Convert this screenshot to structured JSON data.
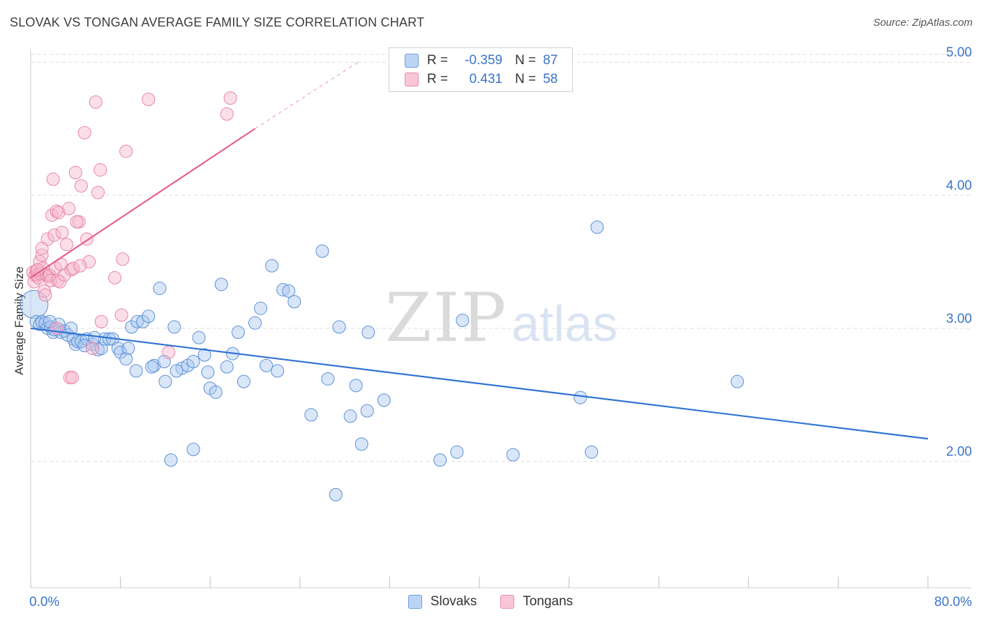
{
  "title": "SLOVAK VS TONGAN AVERAGE FAMILY SIZE CORRELATION CHART",
  "source": "Source: ZipAtlas.com",
  "watermark": {
    "zip": "ZIP",
    "atlas": "atlas"
  },
  "colors": {
    "slovak_fill": "#a9c8f0",
    "slovak_stroke": "#5b8fd6",
    "slovak_line": "#2f72d4",
    "tongan_fill": "#f6b9cb",
    "tongan_stroke": "#e883a4",
    "tongan_line": "#e55f8c",
    "axis_label": "#3a73c9"
  },
  "legend": {
    "rows": [
      {
        "r_label": "R =",
        "r_value": "-0.359",
        "n_label": "N =",
        "n_value": "87"
      },
      {
        "r_label": "R =",
        "r_value": "0.431",
        "n_label": "N =",
        "n_value": "58"
      }
    ]
  },
  "chart_data": {
    "type": "scatter",
    "title": "SLOVAK VS TONGAN AVERAGE FAMILY SIZE CORRELATION CHART",
    "xlabel": "",
    "ylabel": "Average Family Size",
    "xlim": [
      0,
      80
    ],
    "ylim": [
      1.05,
      5.1
    ],
    "x_tick_labels": [
      "0.0%",
      "80.0%"
    ],
    "y_ticks": [
      2.0,
      3.0,
      4.0,
      5.0
    ],
    "y_tick_labels": [
      "2.00",
      "3.00",
      "4.00",
      "5.00"
    ],
    "grid": true,
    "legend_position": "bottom",
    "series": [
      {
        "name": "Slovaks",
        "r": -0.359,
        "n": 87,
        "trend": {
          "x0": 0,
          "y0": 3.0,
          "x1": 80,
          "y1": 2.17
        },
        "points": [
          [
            0.3,
            3.18
          ],
          [
            0.5,
            3.05
          ],
          [
            0.8,
            3.03
          ],
          [
            1.0,
            3.05
          ],
          [
            1.3,
            3.04
          ],
          [
            1.5,
            3.0
          ],
          [
            1.8,
            3.01
          ],
          [
            2.0,
            2.97
          ],
          [
            2.3,
            3.0
          ],
          [
            2.5,
            3.03
          ],
          [
            2.7,
            2.97
          ],
          [
            3.0,
            2.98
          ],
          [
            3.3,
            2.95
          ],
          [
            3.6,
            3.0
          ],
          [
            3.8,
            2.92
          ],
          [
            4.0,
            2.88
          ],
          [
            4.2,
            2.9
          ],
          [
            4.5,
            2.9
          ],
          [
            5.0,
            2.92
          ],
          [
            5.5,
            2.88
          ],
          [
            6.0,
            2.84
          ],
          [
            6.3,
            2.85
          ],
          [
            6.6,
            2.92
          ],
          [
            7.0,
            2.92
          ],
          [
            7.3,
            2.92
          ],
          [
            7.8,
            2.85
          ],
          [
            8.0,
            2.82
          ],
          [
            8.5,
            2.77
          ],
          [
            9.0,
            3.01
          ],
          [
            9.5,
            3.05
          ],
          [
            10.0,
            3.05
          ],
          [
            10.5,
            3.09
          ],
          [
            11.0,
            2.72
          ],
          [
            11.5,
            3.3
          ],
          [
            12.0,
            2.6
          ],
          [
            12.8,
            3.01
          ],
          [
            13.5,
            2.7
          ],
          [
            14.0,
            2.72
          ],
          [
            14.5,
            2.75
          ],
          [
            15.0,
            2.93
          ],
          [
            15.5,
            2.8
          ],
          [
            16.0,
            2.55
          ],
          [
            16.5,
            2.52
          ],
          [
            17.0,
            3.33
          ],
          [
            17.5,
            2.71
          ],
          [
            18.0,
            2.81
          ],
          [
            18.5,
            2.97
          ],
          [
            19.0,
            2.6
          ],
          [
            20.0,
            3.04
          ],
          [
            20.5,
            3.15
          ],
          [
            21.0,
            2.72
          ],
          [
            21.5,
            3.47
          ],
          [
            22.0,
            2.68
          ],
          [
            22.5,
            3.29
          ],
          [
            23.0,
            3.28
          ],
          [
            23.5,
            3.2
          ],
          [
            9.4,
            2.68
          ],
          [
            13.0,
            2.68
          ],
          [
            12.5,
            2.01
          ],
          [
            14.5,
            2.09
          ],
          [
            15.8,
            2.67
          ],
          [
            25.0,
            2.35
          ],
          [
            26.0,
            3.58
          ],
          [
            26.5,
            2.62
          ],
          [
            27.5,
            3.01
          ],
          [
            27.2,
            1.75
          ],
          [
            28.5,
            2.34
          ],
          [
            29.0,
            2.57
          ],
          [
            29.5,
            2.13
          ],
          [
            30.0,
            2.38
          ],
          [
            31.5,
            2.46
          ],
          [
            36.5,
            2.01
          ],
          [
            38.0,
            2.07
          ],
          [
            38.5,
            3.06
          ],
          [
            43.0,
            2.05
          ],
          [
            49.0,
            2.48
          ],
          [
            50.0,
            2.07
          ],
          [
            50.5,
            3.76
          ],
          [
            63.0,
            2.6
          ],
          [
            2.1,
            2.99
          ],
          [
            4.8,
            2.87
          ],
          [
            5.7,
            2.93
          ],
          [
            8.7,
            2.85
          ],
          [
            10.8,
            2.71
          ],
          [
            11.9,
            2.75
          ],
          [
            30.1,
            2.97
          ],
          [
            1.7,
            3.05
          ]
        ]
      },
      {
        "name": "Tongans",
        "r": 0.431,
        "n": 58,
        "trend": {
          "x0": 0,
          "y0": 3.38,
          "x1": 20,
          "y1": 4.5,
          "x_ext": 29.2,
          "y_ext": 5.0
        },
        "points": [
          [
            0.2,
            3.42
          ],
          [
            0.3,
            3.35
          ],
          [
            0.4,
            3.4
          ],
          [
            0.5,
            3.43
          ],
          [
            0.6,
            3.4
          ],
          [
            0.7,
            3.38
          ],
          [
            0.8,
            3.5
          ],
          [
            0.9,
            3.41
          ],
          [
            1.0,
            3.55
          ],
          [
            1.1,
            3.45
          ],
          [
            1.2,
            3.28
          ],
          [
            1.3,
            3.25
          ],
          [
            1.4,
            3.4
          ],
          [
            1.5,
            3.67
          ],
          [
            1.6,
            3.39
          ],
          [
            1.7,
            3.4
          ],
          [
            1.8,
            3.36
          ],
          [
            1.9,
            3.85
          ],
          [
            2.0,
            4.12
          ],
          [
            2.1,
            3.7
          ],
          [
            2.2,
            3.45
          ],
          [
            2.3,
            3.88
          ],
          [
            2.4,
            3.36
          ],
          [
            2.5,
            3.87
          ],
          [
            2.6,
            3.35
          ],
          [
            2.7,
            3.48
          ],
          [
            2.8,
            3.72
          ],
          [
            3.0,
            3.4
          ],
          [
            3.2,
            3.63
          ],
          [
            3.4,
            3.9
          ],
          [
            3.6,
            3.44
          ],
          [
            3.8,
            3.45
          ],
          [
            4.0,
            4.17
          ],
          [
            4.3,
            3.8
          ],
          [
            4.5,
            4.07
          ],
          [
            4.8,
            4.47
          ],
          [
            5.0,
            3.67
          ],
          [
            5.2,
            3.5
          ],
          [
            5.5,
            2.85
          ],
          [
            5.8,
            4.7
          ],
          [
            6.0,
            4.02
          ],
          [
            6.2,
            4.19
          ],
          [
            6.3,
            3.05
          ],
          [
            7.5,
            3.38
          ],
          [
            8.2,
            3.52
          ],
          [
            8.5,
            4.33
          ],
          [
            10.5,
            4.72
          ],
          [
            12.3,
            2.82
          ],
          [
            17.5,
            4.61
          ],
          [
            17.8,
            4.73
          ],
          [
            3.5,
            2.63
          ],
          [
            3.7,
            2.63
          ],
          [
            8.1,
            3.1
          ],
          [
            4.4,
            3.47
          ],
          [
            1.0,
            3.6
          ],
          [
            2.3,
            3.0
          ],
          [
            0.6,
            3.44
          ],
          [
            4.1,
            3.8
          ]
        ]
      }
    ]
  }
}
